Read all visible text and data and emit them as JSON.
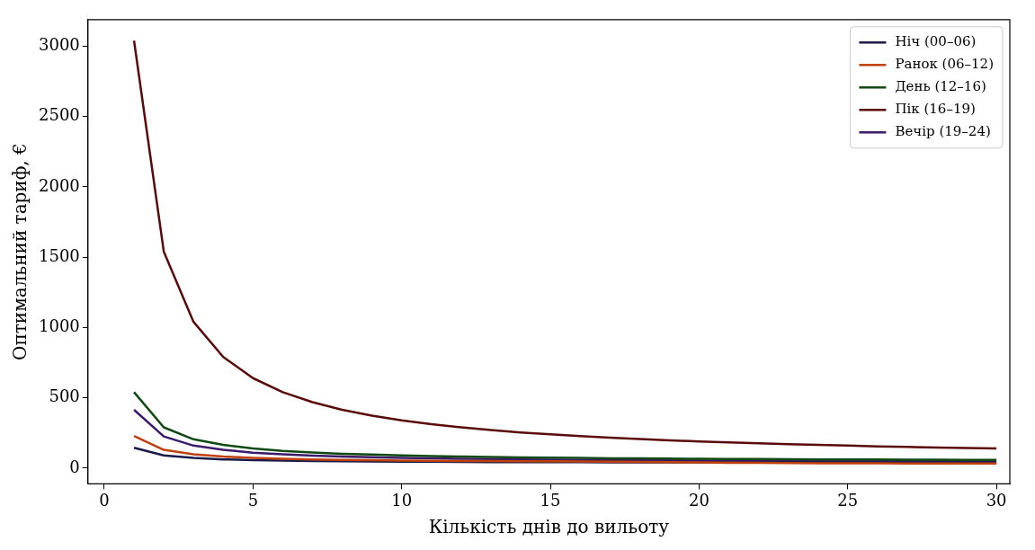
{
  "chart_data": {
    "type": "line",
    "xlabel": "Кількість днів до вильоту",
    "ylabel": "Оптимальний тариф, €",
    "x": [
      1,
      2,
      3,
      4,
      5,
      6,
      7,
      8,
      9,
      10,
      11,
      12,
      13,
      14,
      15,
      16,
      17,
      18,
      19,
      20,
      21,
      22,
      23,
      24,
      25,
      26,
      27,
      28,
      29,
      30
    ],
    "series": [
      {
        "name": "Ніч (00–06)",
        "color": "#1a1a4a",
        "values": [
          145,
          90,
          72,
          62,
          57,
          53,
          50,
          48,
          47,
          46,
          45,
          44,
          43,
          43,
          42,
          42,
          41,
          41,
          41,
          40,
          40,
          40,
          40,
          39,
          39,
          39,
          39,
          39,
          39,
          38
        ]
      },
      {
        "name": "Ранок (06–12)",
        "color": "#c0400a",
        "values": [
          228,
          130,
          98,
          82,
          72,
          66,
          62,
          58,
          56,
          54,
          52,
          51,
          50,
          49,
          48,
          47,
          46,
          44,
          42,
          40,
          38,
          37,
          36,
          35,
          34,
          34,
          33,
          33,
          32,
          32
        ]
      },
      {
        "name": "День (12–16)",
        "color": "#0f4a12",
        "values": [
          540,
          290,
          205,
          165,
          140,
          123,
          111,
          102,
          96,
          90,
          86,
          82,
          79,
          76,
          74,
          72,
          70,
          69,
          68,
          66,
          65,
          64,
          63,
          62,
          62,
          61,
          60,
          60,
          59,
          59
        ]
      },
      {
        "name": "Пік (16–19)",
        "color": "#5a0a0a",
        "values": [
          3040,
          1540,
          1040,
          790,
          640,
          540,
          469,
          415,
          373,
          340,
          313,
          290,
          271,
          254,
          240,
          228,
          216,
          207,
          198,
          190,
          183,
          176,
          170,
          165,
          160,
          155,
          151,
          147,
          143,
          140
        ]
      },
      {
        "name": "Вечір (19–24)",
        "color": "#3a1a6a",
        "values": [
          415,
          225,
          160,
          130,
          110,
          98,
          89,
          82,
          77,
          73,
          69,
          66,
          64,
          62,
          60,
          59,
          57,
          56,
          55,
          54,
          53,
          52,
          52,
          51,
          50,
          50,
          49,
          49,
          49,
          48
        ]
      }
    ],
    "xlim": [
      -0.55,
      30.45
    ],
    "ylim": [
      -112,
      3190
    ],
    "xticks": [
      0,
      5,
      10,
      15,
      20,
      25,
      30
    ],
    "yticks": [
      0,
      500,
      1000,
      1500,
      2000,
      2500,
      3000
    ],
    "grid": false,
    "legend": "top right",
    "marker": "none",
    "line_style": "solid"
  }
}
